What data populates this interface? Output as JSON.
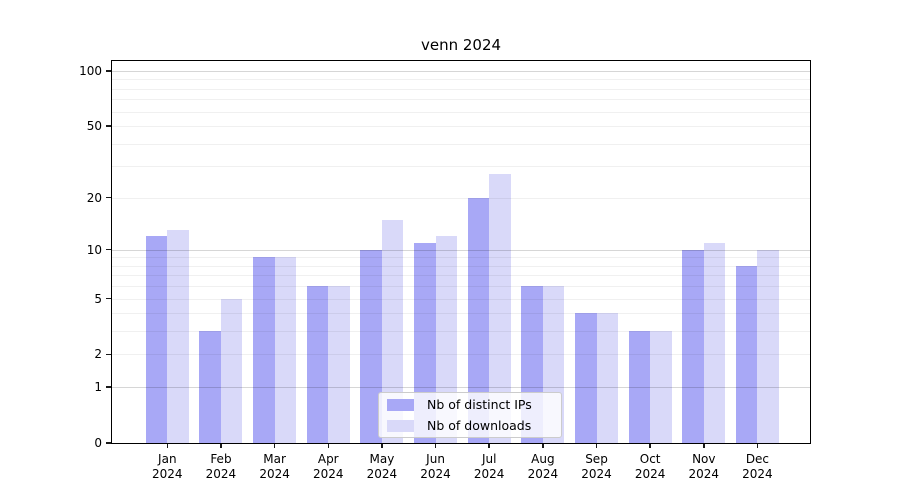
{
  "chart_data": {
    "type": "bar",
    "title": "venn 2024",
    "categories": [
      "Jan 2024",
      "Feb 2024",
      "Mar 2024",
      "Apr 2024",
      "May 2024",
      "Jun 2024",
      "Jul 2024",
      "Aug 2024",
      "Sep 2024",
      "Oct 2024",
      "Nov 2024",
      "Dec 2024"
    ],
    "series": [
      {
        "name": "Nb of distinct IPs",
        "color": "#a8a8f6",
        "values": [
          12,
          3,
          9,
          6,
          10,
          11,
          20,
          6,
          4,
          3,
          10,
          8
        ]
      },
      {
        "name": "Nb of downloads",
        "color": "#d9d9f9",
        "values": [
          13,
          5,
          9,
          6,
          15,
          12,
          27,
          6,
          4,
          3,
          11,
          10
        ]
      }
    ],
    "xlabel": "",
    "ylabel": "",
    "yscale": "log10(1+value)",
    "ylim": [
      0,
      113
    ],
    "yticks": [
      0,
      1,
      2,
      5,
      10,
      20,
      50,
      100
    ],
    "grid": {
      "on": true,
      "major_lines": [
        1,
        10,
        100
      ],
      "minor_lines": [
        2,
        3,
        4,
        5,
        6,
        7,
        8,
        9,
        20,
        30,
        40,
        50,
        60,
        70,
        80,
        90
      ],
      "major_color": "#d6d6d6",
      "minor_color": "#f0f0f0"
    },
    "legend": {
      "position": "lower-center-right",
      "labels": [
        "Nb of distinct IPs",
        "Nb of downloads"
      ]
    },
    "axis_color": "#000000",
    "background": "#ffffff"
  }
}
